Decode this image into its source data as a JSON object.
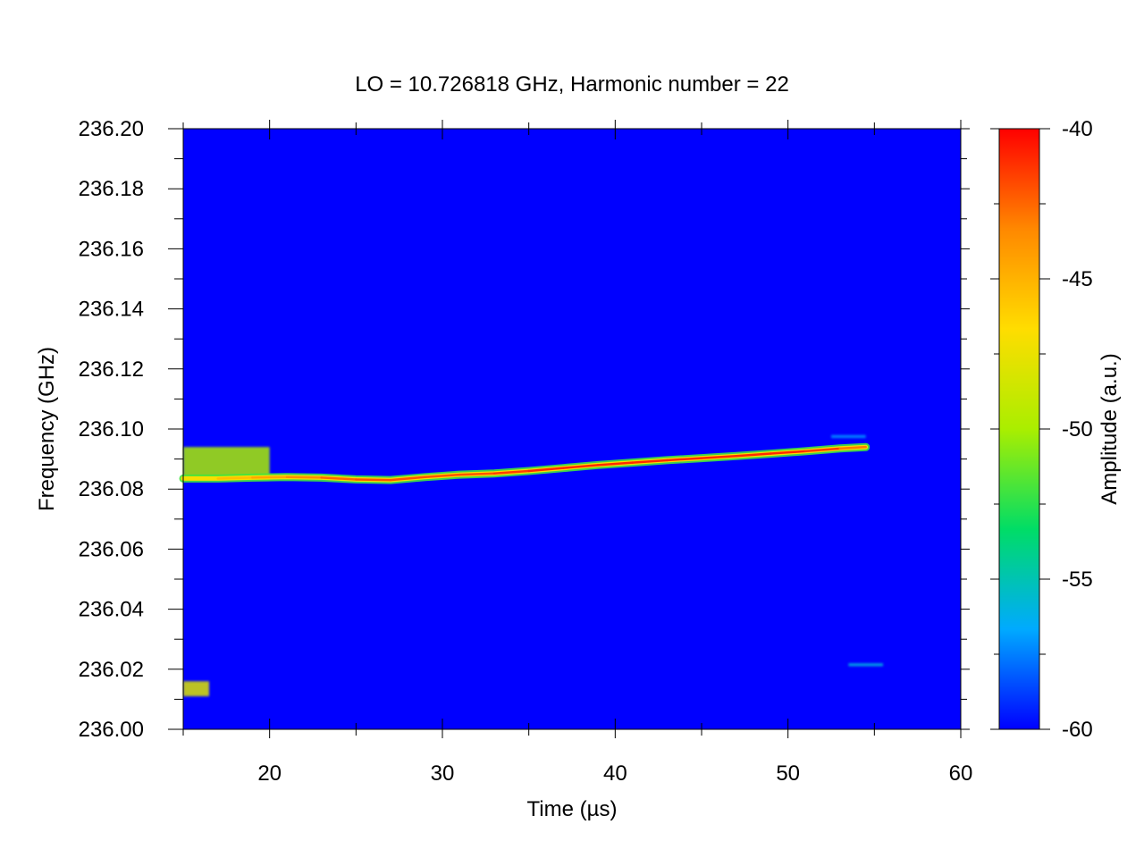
{
  "chart_data": {
    "type": "heatmap",
    "title": "LO = 10.726818 GHz, Harmonic number = 22",
    "xlabel": "Time (µs)",
    "ylabel": "Frequency (GHz)",
    "xlim": [
      15,
      60
    ],
    "ylim": [
      236.0,
      236.2
    ],
    "x_ticks": [
      "20",
      "30",
      "40",
      "50",
      "60"
    ],
    "y_ticks": [
      "236.00",
      "236.02",
      "236.04",
      "236.06",
      "236.08",
      "236.10",
      "236.12",
      "236.14",
      "236.16",
      "236.18",
      "236.20"
    ],
    "colorbar": {
      "label": "Amplitude (a.u.)",
      "range": [
        -60,
        -40
      ],
      "ticks": [
        "-60",
        "-55",
        "-50",
        "-45",
        "-40"
      ],
      "colormap": [
        "#0000ff",
        "#00aaff",
        "#00dd66",
        "#aaee00",
        "#ffdd00",
        "#ff8800",
        "#ff0000"
      ]
    },
    "background_value": -60,
    "series": [
      {
        "x": [
          15.0,
          17.0,
          19.0,
          21.0,
          23.0,
          25.0,
          27.0,
          29.0,
          31.0,
          33.0,
          35.0,
          37.0,
          39.0,
          41.0,
          43.0,
          45.0,
          47.0,
          49.0,
          51.0,
          53.0,
          54.5
        ],
        "y": [
          236.0835,
          236.0835,
          236.0838,
          236.084,
          236.0838,
          236.0832,
          236.083,
          236.084,
          236.0848,
          236.0852,
          236.086,
          236.087,
          236.088,
          236.0888,
          236.0896,
          236.0903,
          236.091,
          236.0918,
          236.0926,
          236.0935,
          236.094
        ],
        "amplitude": [
          -48,
          -46,
          -45,
          -44,
          -43,
          -42,
          -42,
          -42,
          -42,
          -42,
          -41,
          -41,
          -41,
          -41,
          -41,
          -41,
          -41,
          -41,
          -41,
          -42,
          -44
        ]
      }
    ],
    "features": [
      {
        "x": [
          15.0,
          20.0
        ],
        "y": [
          236.083,
          236.094
        ],
        "amplitude": -50
      },
      {
        "x": [
          15.0,
          16.5
        ],
        "y": [
          236.011,
          236.016
        ],
        "amplitude": -48
      },
      {
        "x": [
          53.5,
          55.5
        ],
        "y": [
          236.021,
          236.022
        ],
        "amplitude": -56
      },
      {
        "x": [
          52.5,
          54.5
        ],
        "y": [
          236.097,
          236.098
        ],
        "amplitude": -57
      }
    ]
  }
}
